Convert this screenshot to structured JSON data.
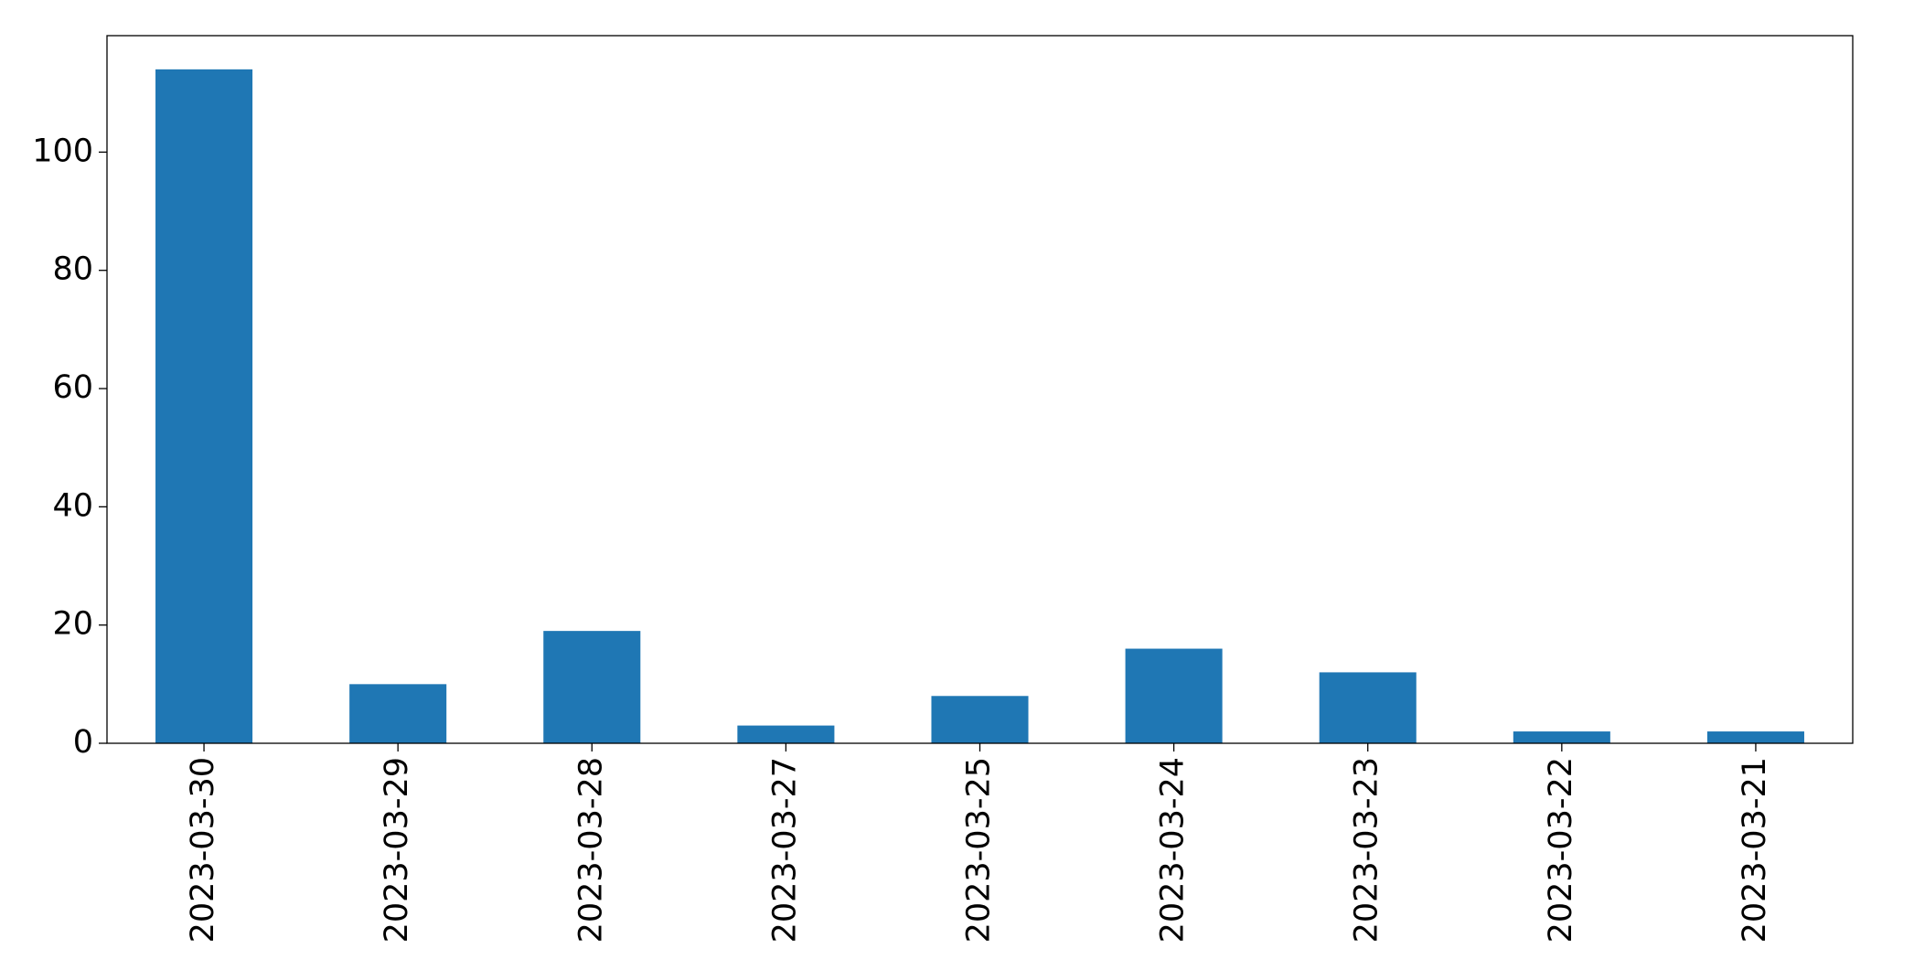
{
  "chart_data": {
    "type": "bar",
    "categories": [
      "2023-03-30",
      "2023-03-29",
      "2023-03-28",
      "2023-03-27",
      "2023-03-25",
      "2023-03-24",
      "2023-03-23",
      "2023-03-22",
      "2023-03-21"
    ],
    "values": [
      114,
      10,
      19,
      3,
      8,
      16,
      12,
      2,
      2
    ],
    "color": "#1f77b4",
    "ylim": [
      0,
      119.7
    ],
    "yticks": [
      0,
      20,
      40,
      60,
      80,
      100
    ],
    "grid": false
  }
}
